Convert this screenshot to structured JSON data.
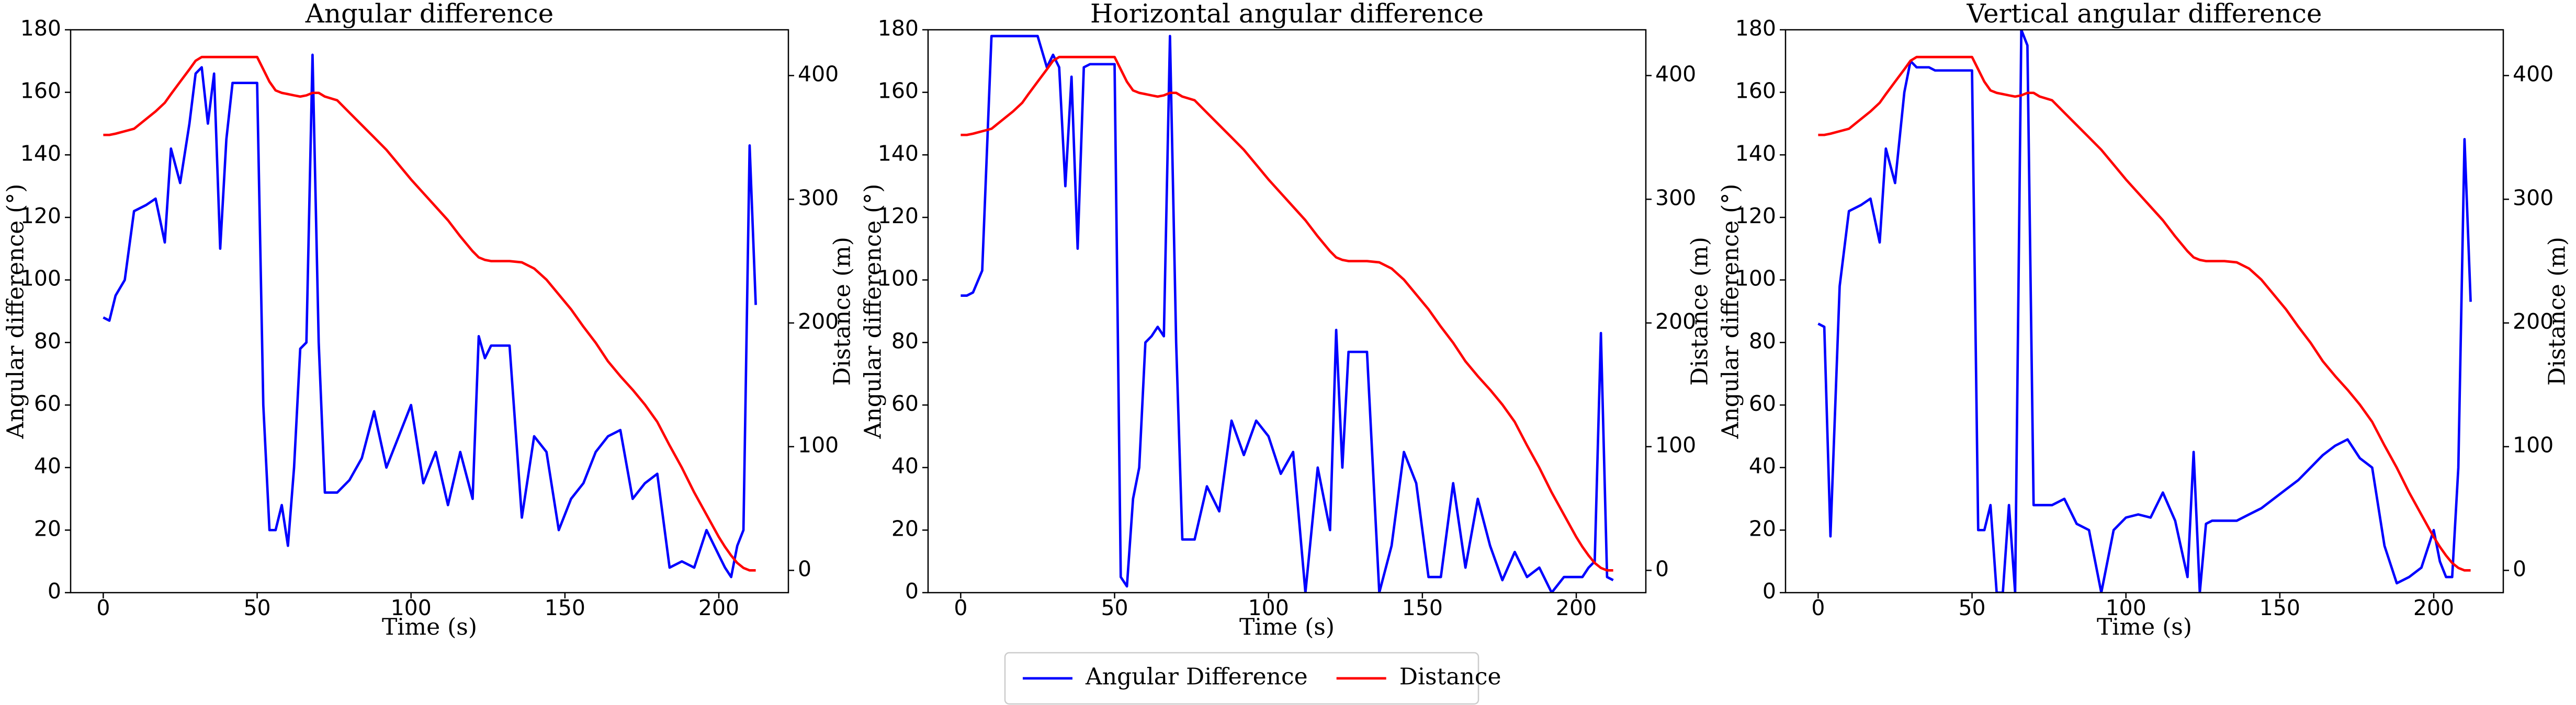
{
  "chart_data": [
    {
      "type": "line",
      "title": "Angular difference",
      "x_label": "Time (s)",
      "y_label": "Angular difference (°)",
      "y2_label": "Distance (m)",
      "x": [
        0,
        2,
        4,
        7,
        10,
        14,
        17,
        20,
        22,
        25,
        28,
        30,
        32,
        34,
        36,
        38,
        40,
        42,
        44,
        46,
        50,
        52,
        54,
        56,
        58,
        60,
        62,
        64,
        66,
        68,
        70,
        72,
        76,
        80,
        84,
        88,
        92,
        96,
        100,
        104,
        108,
        112,
        116,
        120,
        122,
        124,
        126,
        128,
        132,
        136,
        140,
        144,
        148,
        152,
        156,
        160,
        164,
        168,
        172,
        176,
        180,
        184,
        188,
        192,
        196,
        200,
        202,
        204,
        206,
        208,
        210,
        212
      ],
      "xlim": [
        -10.6,
        222.6
      ],
      "xticks": [
        0,
        50,
        100,
        150,
        200
      ],
      "ylim": [
        0,
        180
      ],
      "yticks": [
        0,
        20,
        40,
        60,
        80,
        100,
        120,
        140,
        160,
        180
      ],
      "y2lim": [
        -18,
        437
      ],
      "y2ticks": [
        0,
        100,
        200,
        300,
        400
      ],
      "series": [
        {
          "name": "Angular Difference",
          "color": "blue",
          "values": [
            88,
            87,
            95,
            100,
            122,
            124,
            126,
            112,
            142,
            131,
            150,
            166,
            168,
            150,
            166,
            110,
            145,
            163,
            163,
            163,
            163,
            60,
            20,
            20,
            28,
            15,
            40,
            78,
            80,
            172,
            80,
            32,
            32,
            36,
            43,
            58,
            40,
            50,
            60,
            35,
            45,
            28,
            45,
            30,
            82,
            75,
            79,
            79,
            79,
            24,
            50,
            45,
            20,
            30,
            35,
            45,
            50,
            52,
            30,
            35,
            38,
            8,
            10,
            8,
            20,
            12,
            8,
            5,
            15,
            20,
            143,
            92
          ]
        },
        {
          "name": "Distance",
          "color": "red",
          "axis": "y2",
          "values": [
            352,
            352,
            353,
            355,
            357,
            365,
            371,
            378,
            385,
            395,
            405,
            412,
            415,
            415,
            415,
            415,
            415,
            415,
            415,
            415,
            415,
            405,
            395,
            388,
            386,
            385,
            384,
            383,
            384,
            386,
            386,
            383,
            380,
            370,
            360,
            350,
            340,
            328,
            316,
            305,
            294,
            283,
            270,
            258,
            253,
            251,
            250,
            250,
            250,
            249,
            244,
            235,
            223,
            211,
            197,
            184,
            169,
            157,
            146,
            134,
            120,
            101,
            83,
            63,
            45,
            27,
            19,
            12,
            6,
            2,
            0,
            0
          ]
        }
      ]
    },
    {
      "type": "line",
      "title": "Horizontal angular difference",
      "x_label": "Time (s)",
      "y_label": "Angular difference (°)",
      "y2_label": "Distance (m)",
      "x": [
        0,
        2,
        4,
        7,
        10,
        14,
        17,
        20,
        22,
        25,
        28,
        30,
        32,
        34,
        36,
        38,
        40,
        42,
        44,
        46,
        50,
        52,
        54,
        56,
        58,
        60,
        62,
        64,
        66,
        68,
        70,
        72,
        76,
        80,
        84,
        88,
        92,
        96,
        100,
        104,
        108,
        112,
        116,
        120,
        122,
        124,
        126,
        128,
        132,
        136,
        140,
        144,
        148,
        152,
        156,
        160,
        164,
        168,
        172,
        176,
        180,
        184,
        188,
        192,
        196,
        200,
        202,
        204,
        206,
        208,
        210,
        212
      ],
      "xlim": [
        -10.6,
        222.6
      ],
      "xticks": [
        0,
        50,
        100,
        150,
        200
      ],
      "ylim": [
        0,
        180
      ],
      "yticks": [
        0,
        20,
        40,
        60,
        80,
        100,
        120,
        140,
        160,
        180
      ],
      "y2lim": [
        -18,
        437
      ],
      "y2ticks": [
        0,
        100,
        200,
        300,
        400
      ],
      "series": [
        {
          "name": "Angular Difference",
          "color": "blue",
          "values": [
            95,
            95,
            96,
            103,
            178,
            178,
            178,
            178,
            178,
            178,
            168,
            172,
            168,
            130,
            165,
            110,
            168,
            169,
            169,
            169,
            169,
            5,
            2,
            30,
            40,
            80,
            82,
            85,
            82,
            178,
            80,
            17,
            17,
            34,
            26,
            55,
            44,
            55,
            50,
            38,
            45,
            0,
            40,
            20,
            84,
            40,
            77,
            77,
            77,
            0,
            15,
            45,
            35,
            5,
            5,
            35,
            8,
            30,
            15,
            4,
            13,
            5,
            8,
            0,
            5,
            5,
            5,
            8,
            10,
            83,
            5,
            4
          ]
        },
        {
          "name": "Distance",
          "color": "red",
          "axis": "y2",
          "values": [
            352,
            352,
            353,
            355,
            357,
            365,
            371,
            378,
            385,
            395,
            405,
            412,
            415,
            415,
            415,
            415,
            415,
            415,
            415,
            415,
            415,
            405,
            395,
            388,
            386,
            385,
            384,
            383,
            384,
            386,
            386,
            383,
            380,
            370,
            360,
            350,
            340,
            328,
            316,
            305,
            294,
            283,
            270,
            258,
            253,
            251,
            250,
            250,
            250,
            249,
            244,
            235,
            223,
            211,
            197,
            184,
            169,
            157,
            146,
            134,
            120,
            101,
            83,
            63,
            45,
            27,
            19,
            12,
            6,
            2,
            0,
            0
          ]
        }
      ]
    },
    {
      "type": "line",
      "title": "Vertical angular difference",
      "x_label": "Time (s)",
      "y_label": "Angular difference (°)",
      "y2_label": "Distance (m)",
      "x": [
        0,
        2,
        4,
        7,
        10,
        14,
        17,
        20,
        22,
        25,
        28,
        30,
        32,
        34,
        36,
        38,
        40,
        42,
        44,
        46,
        50,
        52,
        54,
        56,
        58,
        60,
        62,
        64,
        66,
        68,
        70,
        72,
        76,
        80,
        84,
        88,
        92,
        96,
        100,
        104,
        108,
        112,
        116,
        120,
        122,
        124,
        126,
        128,
        132,
        136,
        140,
        144,
        148,
        152,
        156,
        160,
        164,
        168,
        172,
        176,
        180,
        184,
        188,
        192,
        196,
        200,
        202,
        204,
        206,
        208,
        210,
        212
      ],
      "xlim": [
        -10.6,
        222.6
      ],
      "xticks": [
        0,
        50,
        100,
        150,
        200
      ],
      "ylim": [
        0,
        180
      ],
      "yticks": [
        0,
        20,
        40,
        60,
        80,
        100,
        120,
        140,
        160,
        180
      ],
      "y2lim": [
        -18,
        437
      ],
      "y2ticks": [
        0,
        100,
        200,
        300,
        400
      ],
      "series": [
        {
          "name": "Angular Difference",
          "color": "blue",
          "values": [
            86,
            85,
            18,
            98,
            122,
            124,
            126,
            112,
            142,
            131,
            160,
            170,
            168,
            168,
            168,
            167,
            167,
            167,
            167,
            167,
            167,
            20,
            20,
            28,
            0,
            0,
            28,
            0,
            180,
            175,
            28,
            28,
            28,
            30,
            22,
            20,
            0,
            20,
            24,
            25,
            24,
            32,
            23,
            5,
            45,
            0,
            22,
            23,
            23,
            23,
            25,
            27,
            30,
            33,
            36,
            40,
            44,
            47,
            49,
            43,
            40,
            15,
            3,
            5,
            8,
            20,
            10,
            5,
            5,
            40,
            145,
            93
          ]
        },
        {
          "name": "Distance",
          "color": "red",
          "axis": "y2",
          "values": [
            352,
            352,
            353,
            355,
            357,
            365,
            371,
            378,
            385,
            395,
            405,
            412,
            415,
            415,
            415,
            415,
            415,
            415,
            415,
            415,
            415,
            405,
            395,
            388,
            386,
            385,
            384,
            383,
            384,
            386,
            386,
            383,
            380,
            370,
            360,
            350,
            340,
            328,
            316,
            305,
            294,
            283,
            270,
            258,
            253,
            251,
            250,
            250,
            250,
            249,
            244,
            235,
            223,
            211,
            197,
            184,
            169,
            157,
            146,
            134,
            120,
            101,
            83,
            63,
            45,
            27,
            19,
            12,
            6,
            2,
            0,
            0
          ]
        }
      ]
    }
  ]
}
